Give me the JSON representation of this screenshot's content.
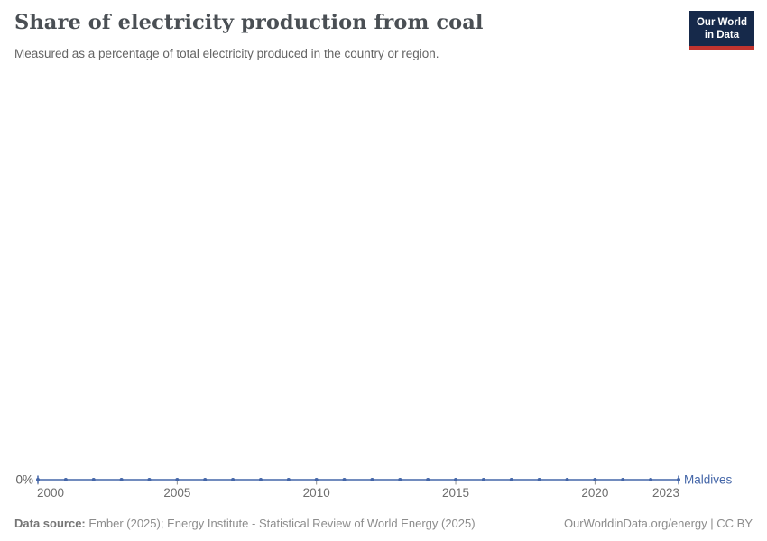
{
  "header": {
    "title": "Share of electricity production from coal",
    "subtitle": "Measured as a percentage of total electricity produced in the country or region."
  },
  "logo": {
    "line1": "Our World",
    "line2": "in Data",
    "bg_color": "#16294a",
    "stripe_color": "#c1342f"
  },
  "chart_data": {
    "type": "line",
    "title": "Share of electricity production from coal",
    "xlabel": "",
    "ylabel": "",
    "unit": "%",
    "x": [
      2000,
      2001,
      2002,
      2003,
      2004,
      2005,
      2006,
      2007,
      2008,
      2009,
      2010,
      2011,
      2012,
      2013,
      2014,
      2015,
      2016,
      2017,
      2018,
      2019,
      2020,
      2021,
      2022,
      2023
    ],
    "series": [
      {
        "name": "Maldives",
        "color": "#4466a8",
        "values": [
          0,
          0,
          0,
          0,
          0,
          0,
          0,
          0,
          0,
          0,
          0,
          0,
          0,
          0,
          0,
          0,
          0,
          0,
          0,
          0,
          0,
          0,
          0,
          0
        ]
      }
    ],
    "xlim": [
      2000,
      2023
    ],
    "ylim": [
      0,
      100
    ],
    "xticks": [
      2000,
      2005,
      2010,
      2015,
      2020,
      2023
    ],
    "yticks": [
      "0%"
    ],
    "grid": false,
    "legend_position": "line-end-label",
    "axis_label_color": "#6e6e6e",
    "ytick_label": "0%"
  },
  "footer": {
    "source_label": "Data source:",
    "source_text": " Ember (2025); Energy Institute - Statistical Review of World Energy (2025)",
    "right_text": "OurWorldinData.org/energy | CC BY"
  }
}
